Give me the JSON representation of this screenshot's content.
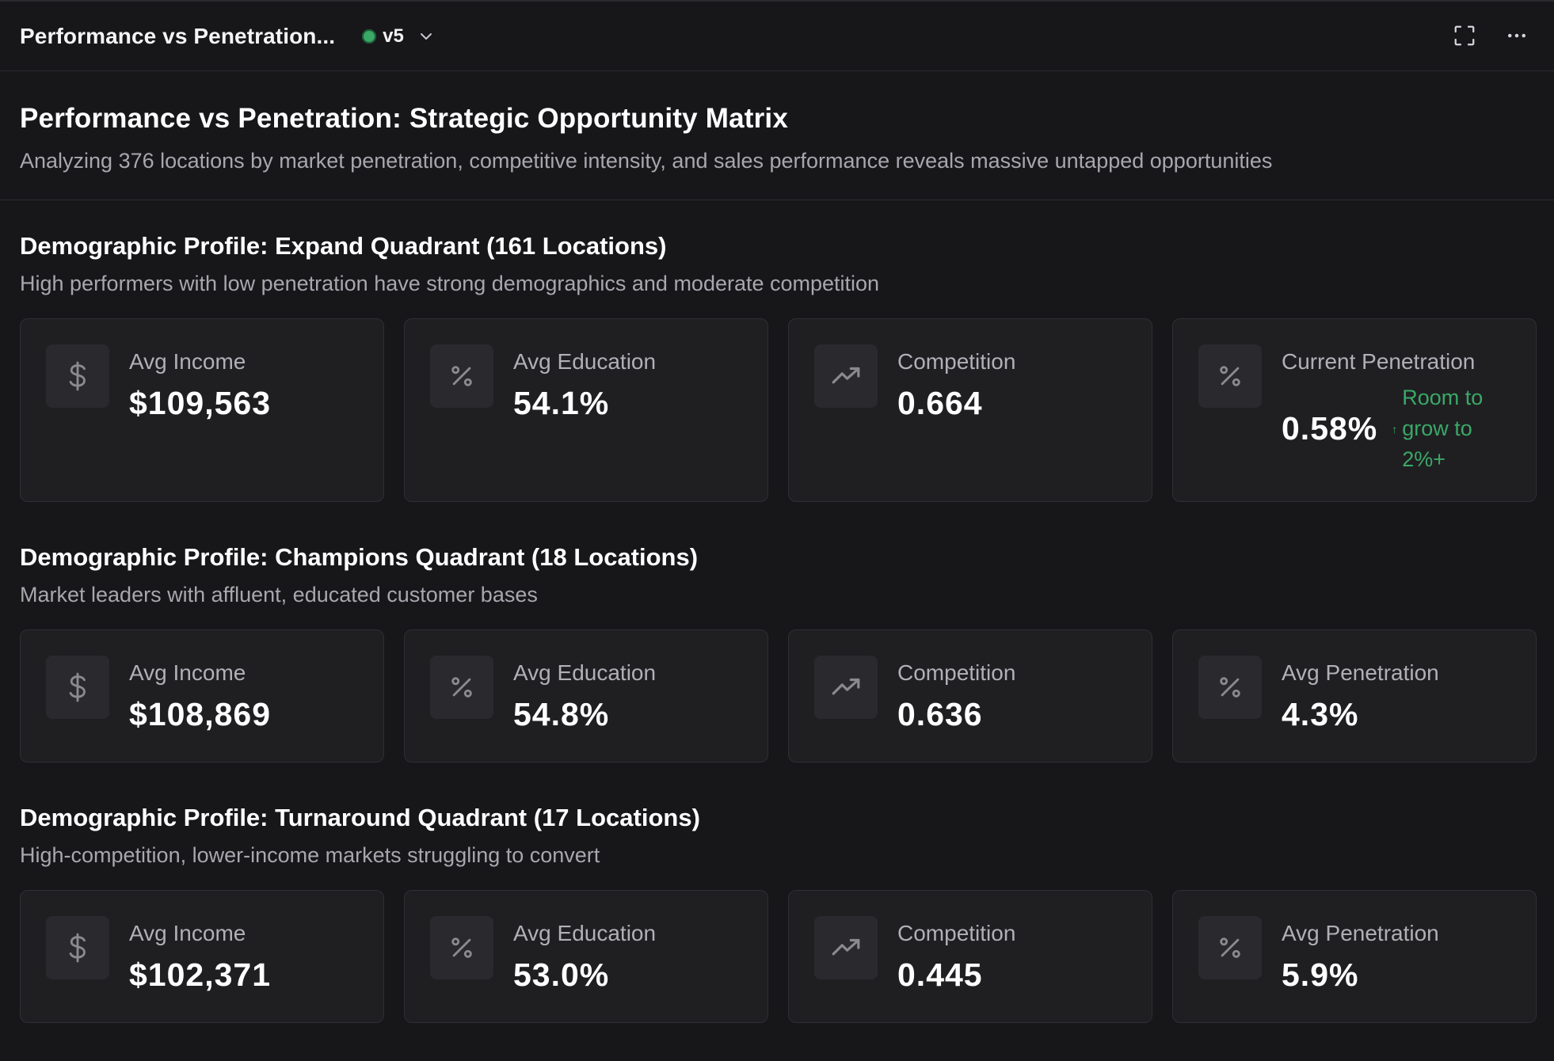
{
  "topbar": {
    "title": "Performance vs Penetration...",
    "version": "v5",
    "status_color": "#3aa866"
  },
  "header": {
    "title": "Performance vs Penetration: Strategic Opportunity Matrix",
    "subtitle": "Analyzing 376 locations by market penetration, competitive intensity, and sales performance reveals massive untapped opportunities"
  },
  "sections": [
    {
      "title": "Demographic Profile: Expand Quadrant (161 Locations)",
      "subtitle": "High performers with low penetration have strong demographics and moderate competition",
      "cards": [
        {
          "icon": "dollar-icon",
          "label": "Avg Income",
          "value": "$109,563"
        },
        {
          "icon": "percent-icon",
          "label": "Avg Education",
          "value": "54.1%"
        },
        {
          "icon": "trending-up-icon",
          "label": "Competition",
          "value": "0.664"
        },
        {
          "icon": "percent-icon",
          "label": "Current Penetration",
          "value": "0.58%",
          "note": "Room to grow to 2%+",
          "note_color": "#3aa866"
        }
      ]
    },
    {
      "title": "Demographic Profile: Champions Quadrant (18 Locations)",
      "subtitle": "Market leaders with affluent, educated customer bases",
      "cards": [
        {
          "icon": "dollar-icon",
          "label": "Avg Income",
          "value": "$108,869"
        },
        {
          "icon": "percent-icon",
          "label": "Avg Education",
          "value": "54.8%"
        },
        {
          "icon": "trending-up-icon",
          "label": "Competition",
          "value": "0.636"
        },
        {
          "icon": "percent-icon",
          "label": "Avg Penetration",
          "value": "4.3%"
        }
      ]
    },
    {
      "title": "Demographic Profile: Turnaround Quadrant (17 Locations)",
      "subtitle": "High-competition, lower-income markets struggling to convert",
      "cards": [
        {
          "icon": "dollar-icon",
          "label": "Avg Income",
          "value": "$102,371"
        },
        {
          "icon": "percent-icon",
          "label": "Avg Education",
          "value": "53.0%"
        },
        {
          "icon": "trending-up-icon",
          "label": "Competition",
          "value": "0.445"
        },
        {
          "icon": "percent-icon",
          "label": "Avg Penetration",
          "value": "5.9%"
        }
      ]
    }
  ]
}
